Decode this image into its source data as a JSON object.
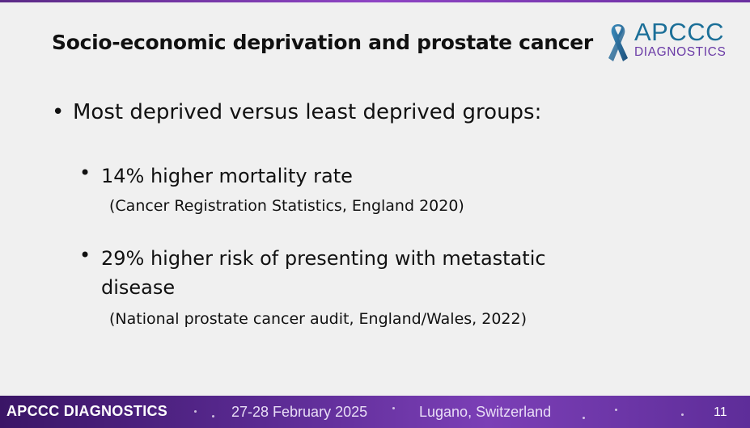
{
  "slide": {
    "title": "Socio-economic deprivation and prostate cancer",
    "bullets": {
      "main": "Most deprived versus least deprived groups:",
      "sub": [
        {
          "text": "14% higher mortality rate",
          "citation": "(Cancer Registration Statistics, England 2020)"
        },
        {
          "text": "29% higher risk of presenting with metastatic disease",
          "citation": "(National prostate cancer audit, England/Wales, 2022)"
        }
      ]
    },
    "bullet_glyph": "•"
  },
  "logo": {
    "main": "APCCC",
    "sub": "DIAGNOSTICS",
    "icon": "ribbon-icon",
    "colors": {
      "main": "#1b6f98",
      "sub": "#6a3aa6"
    }
  },
  "footer": {
    "brand": "APCCC DIAGNOSTICS",
    "date": "27-28 February 2025",
    "location": "Lugano, Switzerland",
    "page": "11",
    "accent": "#5a2a92"
  }
}
